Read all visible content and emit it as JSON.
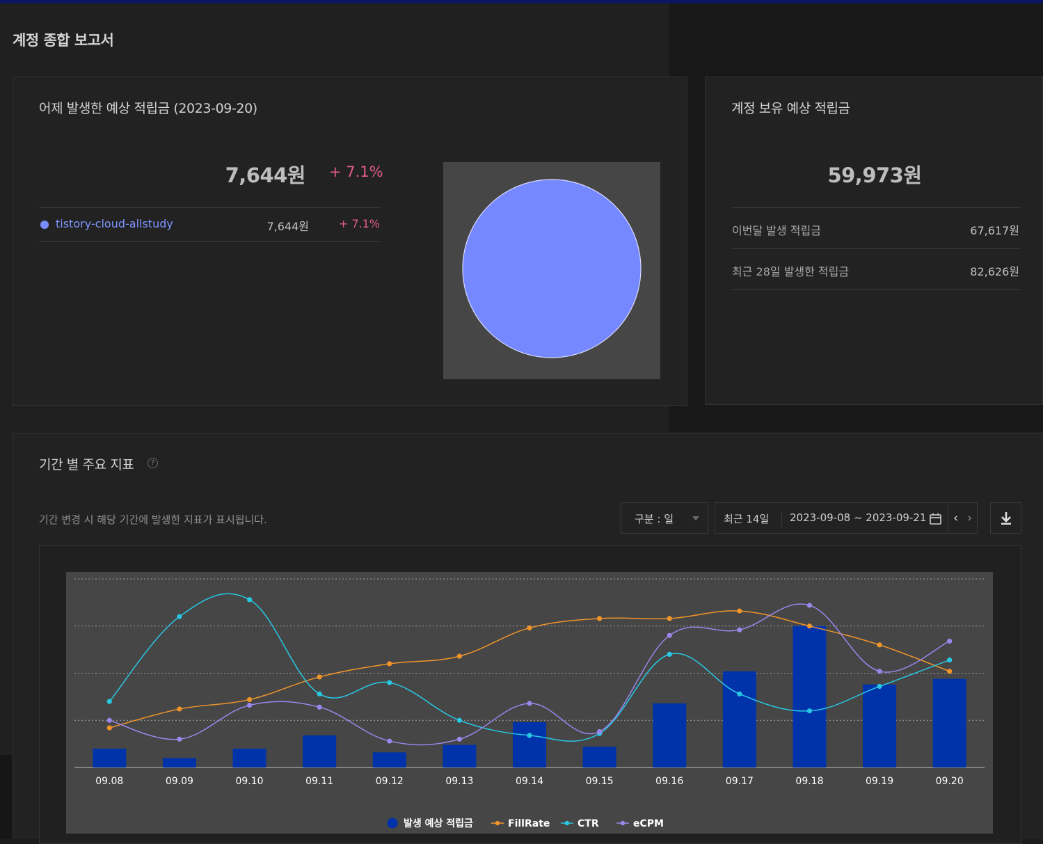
{
  "page": {
    "title": "계정 종합 보고서"
  },
  "yesterday": {
    "title": "어제 발생한 예상 적립금 (2023-09-20)",
    "amount": "7,644원",
    "change": "+ 7.1%",
    "sites": [
      {
        "name": "tistory-cloud-allstudy",
        "amount": "7,644원",
        "change": "+ 7.1%",
        "color": "#7b8cff",
        "share": 1.0
      }
    ]
  },
  "balance": {
    "title": "계정 보유 예상 적립금",
    "amount": "59,973원",
    "rows": [
      {
        "label": "이번달 발생 적립금",
        "value": "67,617원"
      },
      {
        "label": "최근 28일 발생한 적립금",
        "value": "82,626원"
      }
    ]
  },
  "metrics": {
    "title": "기간 별 주요 지표",
    "help_icon": "question-circle-icon",
    "description": "기간 변경 시 해당 기간에 발생한 지표가 표시됩니다.",
    "granularity": "구분 : 일",
    "preset": "최근 14일",
    "date_range": "2023-09-08 ~ 2023-09-21",
    "icons": {
      "calendar": "calendar-icon",
      "prev": "chevron-left-icon",
      "next": "chevron-right-icon",
      "download": "download-icon"
    }
  },
  "chart_data": {
    "type": "bar",
    "categories": [
      "09.08",
      "09.09",
      "09.10",
      "09.11",
      "09.12",
      "09.13",
      "09.14",
      "09.15",
      "09.16",
      "09.17",
      "09.18",
      "09.19",
      "09.20"
    ],
    "normalized": true,
    "ylim": [
      0,
      1
    ],
    "gridlines": 4,
    "legend_position": "bottom",
    "series": [
      {
        "name": "발생 예상 적립금",
        "type": "bar",
        "color": "#0033aa",
        "values": [
          0.1,
          0.05,
          0.1,
          0.17,
          0.08,
          0.12,
          0.24,
          0.11,
          0.34,
          0.51,
          0.75,
          0.44,
          0.47
        ]
      },
      {
        "name": "FillRate",
        "type": "line",
        "color": "#f0952a",
        "values": [
          0.21,
          0.31,
          0.36,
          0.48,
          0.55,
          0.59,
          0.74,
          0.79,
          0.79,
          0.83,
          0.75,
          0.65,
          0.51
        ]
      },
      {
        "name": "CTR",
        "type": "line",
        "color": "#28c8e4",
        "values": [
          0.35,
          0.8,
          0.89,
          0.39,
          0.45,
          0.25,
          0.17,
          0.18,
          0.6,
          0.39,
          0.3,
          0.43,
          0.57
        ]
      },
      {
        "name": "eCPM",
        "type": "line",
        "color": "#9b86ec",
        "values": [
          0.25,
          0.15,
          0.33,
          0.32,
          0.14,
          0.15,
          0.34,
          0.19,
          0.7,
          0.73,
          0.86,
          0.51,
          0.67
        ]
      }
    ]
  }
}
